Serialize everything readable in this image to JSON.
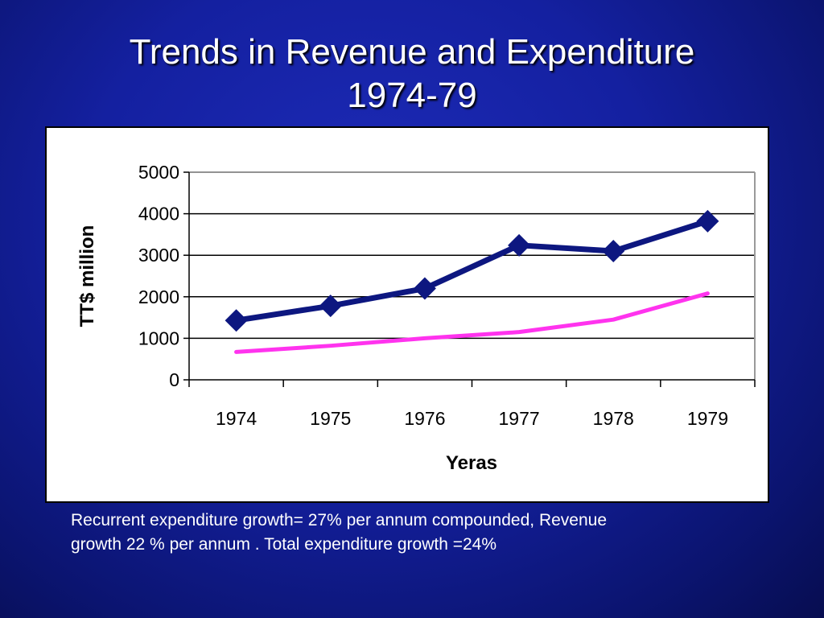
{
  "slide": {
    "title_line1": "Trends in Revenue and Expenditure",
    "title_line2": "1974-79",
    "caption_line1": "Recurrent expenditure growth= 27% per annum compounded,  Revenue",
    "caption_line2": "growth 22 % per annum .  Total expenditure growth =24%"
  },
  "chart_data": {
    "type": "line",
    "title": "",
    "xlabel": "Yeras",
    "ylabel": "TT$ million",
    "categories": [
      "1974",
      "1975",
      "1976",
      "1977",
      "1978",
      "1979"
    ],
    "ylim": [
      0,
      5000
    ],
    "yticks": [
      "0",
      "1000",
      "2000",
      "3000",
      "4000",
      "5000"
    ],
    "grid": true,
    "legend": "none",
    "series": [
      {
        "values": [
          1430,
          1780,
          2200,
          3240,
          3100,
          3820
        ],
        "color": "#0d1780",
        "marker": "diamond"
      },
      {
        "values": [
          670,
          820,
          1000,
          1150,
          1450,
          2080
        ],
        "color": "#ff33ee",
        "marker": "none"
      }
    ]
  }
}
